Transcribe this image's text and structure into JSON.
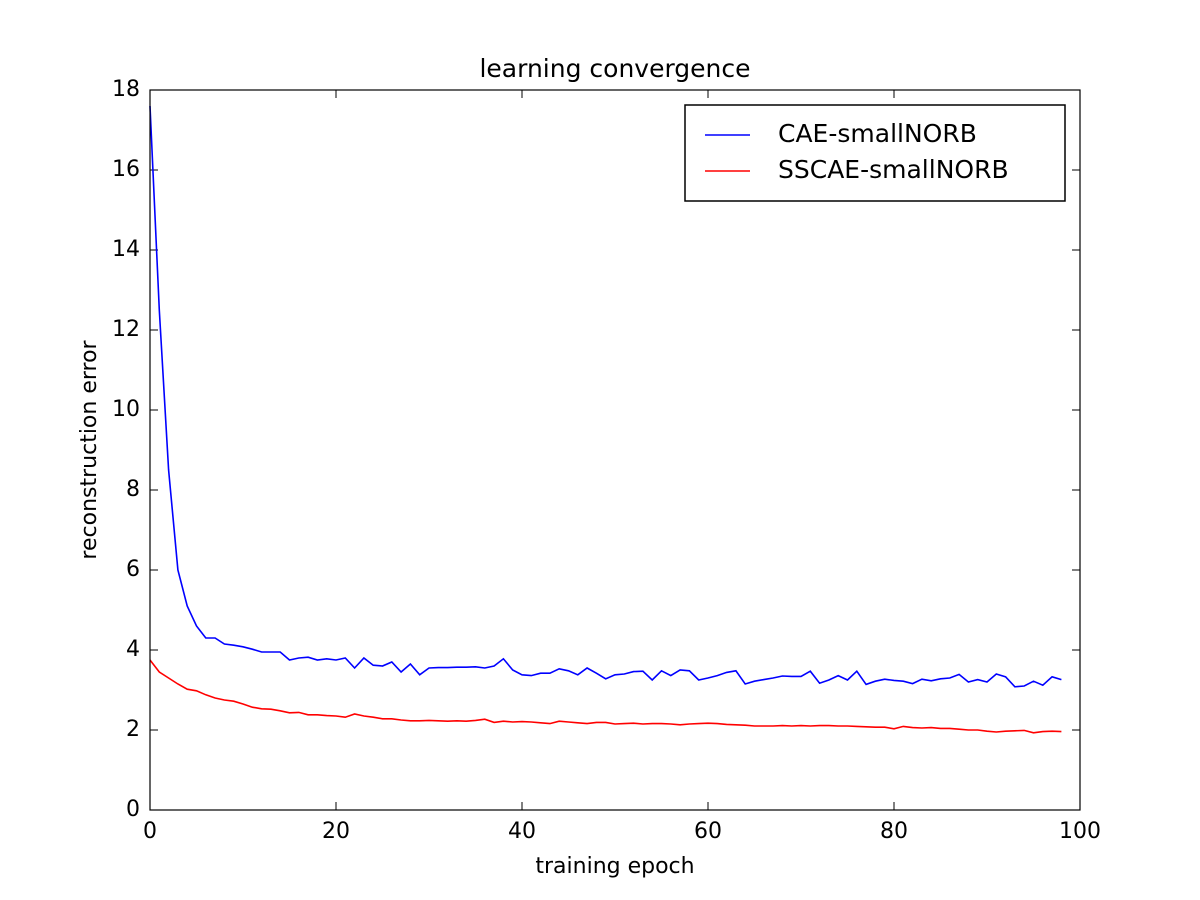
{
  "chart_data": {
    "type": "line",
    "title": "learning convergence",
    "x_label": "training epoch",
    "y_label": "reconstruction error",
    "x": [
      0,
      1,
      2,
      3,
      4,
      5,
      6,
      7,
      8,
      9,
      10,
      11,
      12,
      13,
      14,
      15,
      16,
      17,
      18,
      19,
      20,
      21,
      22,
      23,
      24,
      25,
      26,
      27,
      28,
      29,
      30,
      31,
      32,
      33,
      34,
      35,
      36,
      37,
      38,
      39,
      40,
      41,
      42,
      43,
      44,
      45,
      46,
      47,
      48,
      49,
      50,
      51,
      52,
      53,
      54,
      55,
      56,
      57,
      58,
      59,
      60,
      61,
      62,
      63,
      64,
      65,
      66,
      67,
      68,
      69,
      70,
      71,
      72,
      73,
      74,
      75,
      76,
      77,
      78,
      79,
      80,
      81,
      82,
      83,
      84,
      85,
      86,
      87,
      88,
      89,
      90,
      91,
      92,
      93,
      94,
      95,
      96,
      97,
      98
    ],
    "series": [
      {
        "name": "CAE-smallNORB",
        "color": "#0000ff",
        "values": [
          17.6,
          12.5,
          8.5,
          6.0,
          5.1,
          4.6,
          4.3,
          4.3,
          4.15,
          4.12,
          4.08,
          4.02,
          3.95,
          3.95,
          3.95,
          3.75,
          3.8,
          3.82,
          3.75,
          3.78,
          3.75,
          3.8,
          3.55,
          3.8,
          3.62,
          3.6,
          3.7,
          3.45,
          3.65,
          3.38,
          3.55,
          3.56,
          3.56,
          3.57,
          3.57,
          3.58,
          3.55,
          3.6,
          3.78,
          3.5,
          3.38,
          3.36,
          3.42,
          3.42,
          3.53,
          3.48,
          3.38,
          3.55,
          3.42,
          3.28,
          3.38,
          3.4,
          3.46,
          3.47,
          3.25,
          3.48,
          3.36,
          3.5,
          3.48,
          3.25,
          3.3,
          3.36,
          3.44,
          3.48,
          3.15,
          3.22,
          3.26,
          3.3,
          3.35,
          3.34,
          3.34,
          3.47,
          3.17,
          3.25,
          3.36,
          3.25,
          3.47,
          3.14,
          3.22,
          3.27,
          3.24,
          3.22,
          3.16,
          3.27,
          3.23,
          3.28,
          3.3,
          3.39,
          3.2,
          3.26,
          3.2,
          3.4,
          3.33,
          3.08,
          3.1,
          3.22,
          3.12,
          3.33,
          3.26
        ]
      },
      {
        "name": "SSCAE-smallNORB",
        "color": "#ff0000",
        "values": [
          3.75,
          3.45,
          3.3,
          3.15,
          3.02,
          2.98,
          2.88,
          2.8,
          2.75,
          2.72,
          2.65,
          2.57,
          2.53,
          2.52,
          2.48,
          2.43,
          2.44,
          2.38,
          2.38,
          2.36,
          2.35,
          2.32,
          2.4,
          2.35,
          2.32,
          2.28,
          2.28,
          2.25,
          2.23,
          2.23,
          2.24,
          2.23,
          2.22,
          2.23,
          2.22,
          2.24,
          2.27,
          2.19,
          2.22,
          2.2,
          2.21,
          2.2,
          2.18,
          2.16,
          2.22,
          2.2,
          2.18,
          2.16,
          2.19,
          2.19,
          2.15,
          2.16,
          2.17,
          2.15,
          2.16,
          2.16,
          2.15,
          2.13,
          2.15,
          2.16,
          2.17,
          2.16,
          2.14,
          2.13,
          2.12,
          2.1,
          2.1,
          2.1,
          2.11,
          2.1,
          2.11,
          2.1,
          2.11,
          2.11,
          2.1,
          2.1,
          2.09,
          2.08,
          2.07,
          2.07,
          2.03,
          2.09,
          2.06,
          2.05,
          2.06,
          2.04,
          2.04,
          2.02,
          2.0,
          2.0,
          1.97,
          1.95,
          1.97,
          1.98,
          1.99,
          1.93,
          1.96,
          1.97,
          1.96
        ]
      }
    ],
    "xlim": [
      0,
      100
    ],
    "xticks": [
      0,
      20,
      40,
      60,
      80,
      100
    ],
    "ylim": [
      0,
      18
    ],
    "yticks": [
      0,
      2,
      4,
      6,
      8,
      10,
      12,
      14,
      16,
      18
    ],
    "legend": "upper right",
    "grid": false
  }
}
